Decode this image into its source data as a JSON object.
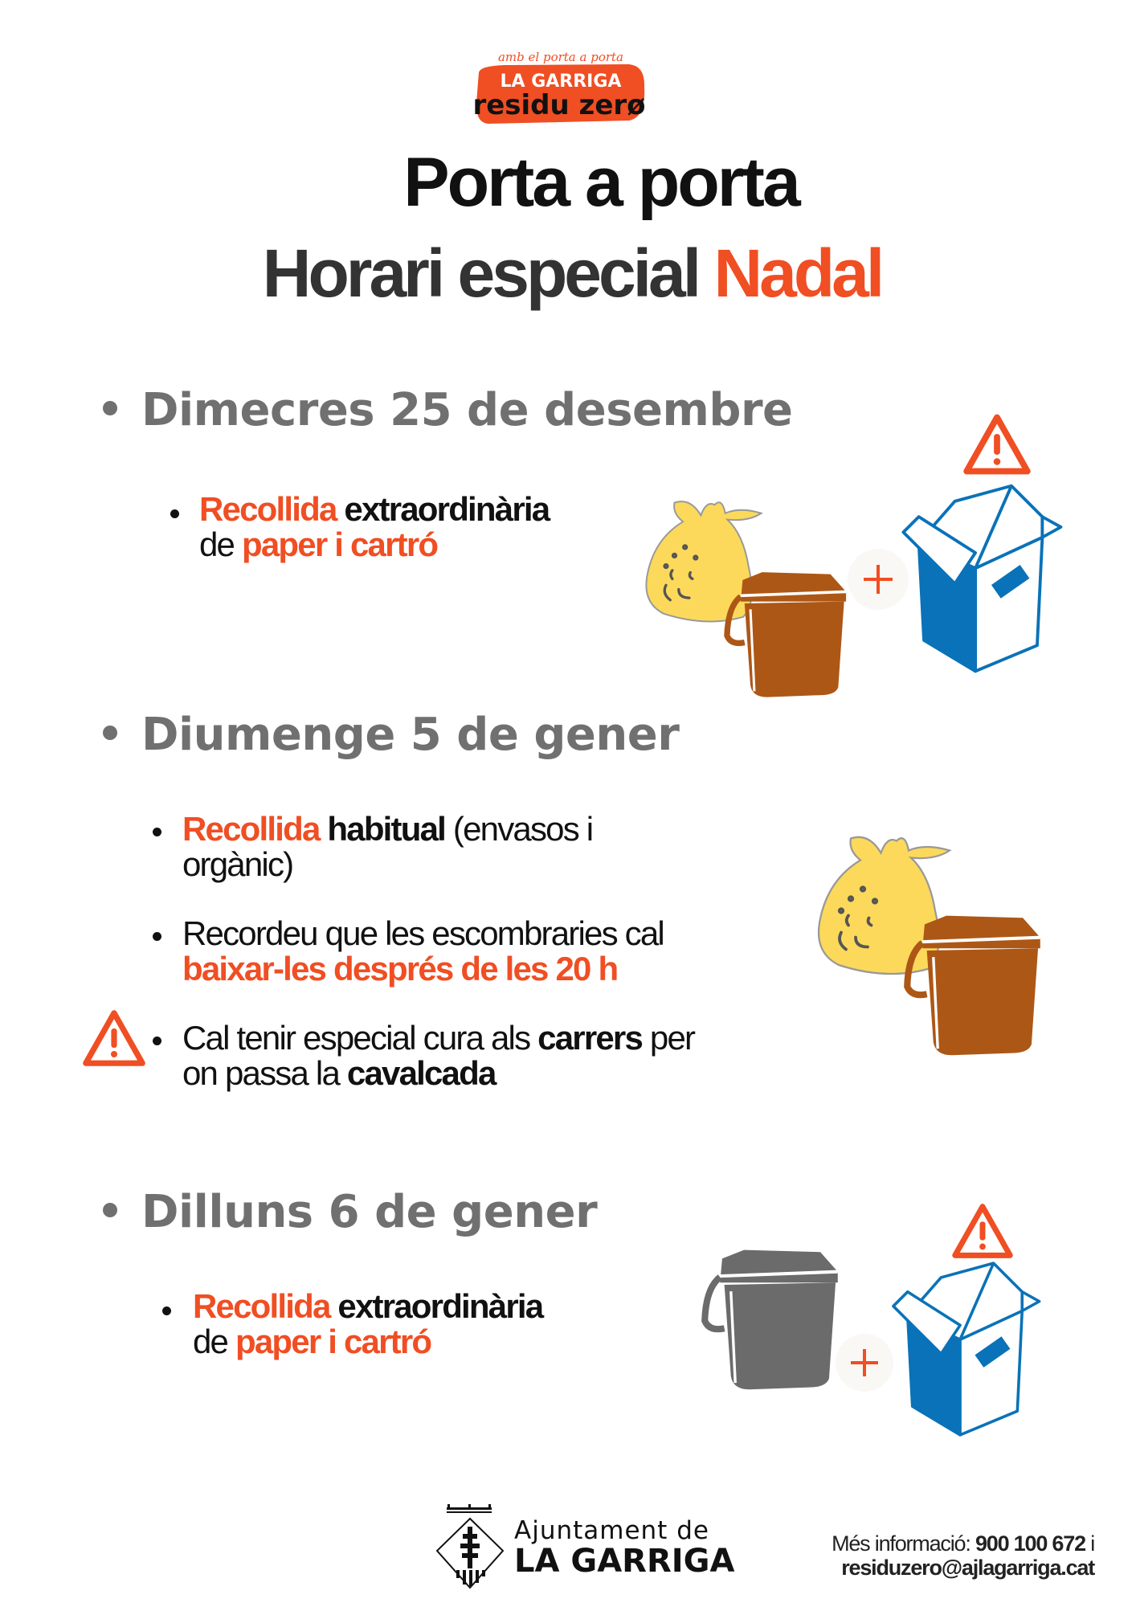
{
  "logo": {
    "tagline": "amb el porta a porta",
    "line1": "LA GARRIGA",
    "line2": "residu zerø"
  },
  "title": {
    "line1": "Porta a porta",
    "line2_main": "Horari especial",
    "line2_accent": "Nadal"
  },
  "colors": {
    "accent": "#f04e23",
    "heading_gray": "#707070",
    "organic_bin": "#ad5716",
    "bag_yellow": "#fcd95a",
    "paper_blue": "#0a72b8",
    "rest_bin_gray": "#6b6b6b"
  },
  "sections": [
    {
      "heading": "Dimecres 25 de desembre",
      "items": [
        {
          "a": "Recollida",
          "b": " extraordinària",
          "c": "de ",
          "d": "paper i cartró"
        }
      ],
      "icons": [
        "warning-icon",
        "yellow-bag-icon",
        "organic-bin-icon",
        "plus-icon",
        "paper-box-icon"
      ]
    },
    {
      "heading": "Diumenge 5 de gener",
      "items": [
        {
          "a": "Recollida",
          "b": " habitual",
          "c": " (envasos i",
          "d": "orgànic)"
        },
        {
          "a": "Recordeu que les escombraries cal",
          "b": "baixar-les després de les 20 h"
        },
        {
          "a": "Cal tenir especial cura als ",
          "b": "carrers",
          "c": " per",
          "d": "on passa la ",
          "e": "cavalcada"
        }
      ],
      "icons": [
        "yellow-bag-icon",
        "organic-bin-icon",
        "warning-icon"
      ]
    },
    {
      "heading": "Dilluns 6 de gener",
      "items": [
        {
          "a": "Recollida",
          "b": " extraordinària",
          "c": "de ",
          "d": "paper i cartró"
        }
      ],
      "icons": [
        "rest-bin-icon",
        "plus-icon",
        "paper-box-icon",
        "warning-icon"
      ]
    }
  ],
  "footer": {
    "council_line1": "Ajuntament de",
    "council_line2": "LA GARRIGA",
    "info_label": "Més informació: ",
    "phone": "900 100 672",
    "conj": " i",
    "email": "residuzero@ajlagarriga.cat"
  }
}
